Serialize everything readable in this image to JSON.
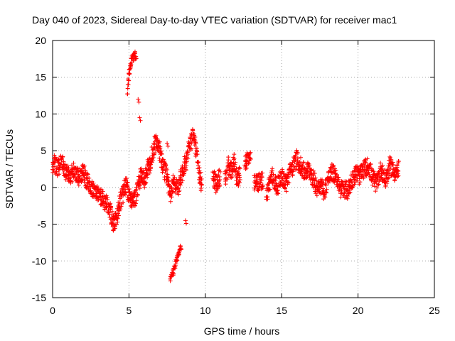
{
  "chart_data": {
    "type": "scatter",
    "title": "Day 040 of 2023, Sidereal Day-to-day VTEC variation (SDTVAR) for receiver mac1",
    "xlabel": "GPS time / hours",
    "ylabel": "SDTVAR / TECUs",
    "xlim": [
      0,
      25
    ],
    "ylim": [
      -15,
      20
    ],
    "xticks": [
      "0",
      "5",
      "10",
      "15",
      "20",
      "25"
    ],
    "yticks": [
      "-15",
      "-10",
      "-5",
      "0",
      "5",
      "10",
      "15",
      "20"
    ],
    "grid": true,
    "marker": "+",
    "series": [
      {
        "name": "SDTVAR",
        "color": "#ff0000",
        "trace": [
          [
            0.0,
            2.5
          ],
          [
            0.1,
            3.5
          ],
          [
            0.3,
            2.5
          ],
          [
            0.5,
            3.2
          ],
          [
            0.7,
            3.0
          ],
          [
            0.9,
            2.0
          ],
          [
            1.1,
            1.5
          ],
          [
            1.4,
            2.2
          ],
          [
            1.7,
            1.5
          ],
          [
            2.0,
            2.2
          ],
          [
            2.2,
            1.0
          ],
          [
            2.5,
            0.0
          ],
          [
            2.8,
            -0.5
          ],
          [
            3.0,
            -1.0
          ],
          [
            3.3,
            -1.5
          ],
          [
            3.6,
            -2.5
          ],
          [
            3.8,
            -3.5
          ],
          [
            4.0,
            -5.0
          ],
          [
            4.2,
            -4.0
          ],
          [
            4.4,
            -2.0
          ],
          [
            4.6,
            -1.0
          ],
          [
            4.8,
            0.5
          ],
          [
            5.0,
            -1.0
          ],
          [
            5.2,
            -2.0
          ],
          [
            5.4,
            -1.5
          ],
          [
            5.6,
            0.0
          ],
          [
            5.8,
            2.0
          ],
          [
            6.0,
            1.0
          ],
          [
            6.2,
            2.5
          ],
          [
            6.4,
            3.0
          ],
          [
            6.6,
            5.0
          ],
          [
            6.8,
            6.5
          ],
          [
            7.0,
            5.0
          ],
          [
            7.2,
            3.0
          ],
          [
            7.5,
            1.5
          ],
          [
            7.7,
            -1.0
          ],
          [
            7.9,
            0.5
          ],
          [
            8.2,
            0.0
          ],
          [
            8.5,
            2.0
          ],
          [
            8.8,
            4.0
          ],
          [
            9.0,
            6.0
          ],
          [
            9.2,
            7.0
          ],
          [
            9.4,
            5.0
          ],
          [
            9.6,
            2.0
          ],
          [
            9.8,
            0.0
          ]
        ],
        "burst": [
          [
            4.9,
            13.0
          ],
          [
            5.0,
            15.5
          ],
          [
            5.15,
            17.0
          ],
          [
            5.3,
            17.8
          ],
          [
            5.5,
            18.0
          ]
        ],
        "dip": [
          [
            7.7,
            -12.5
          ],
          [
            7.9,
            -11.5
          ],
          [
            8.1,
            -10.0
          ],
          [
            8.3,
            -8.5
          ],
          [
            8.45,
            -8.0
          ]
        ],
        "spikes": [
          [
            5.6,
            12.0
          ],
          [
            5.7,
            9.5
          ],
          [
            6.5,
            5.5
          ],
          [
            8.7,
            -4.5
          ],
          [
            7.5,
            6.0
          ]
        ],
        "clusters": [
          [
            [
              10.5,
              1.5
            ],
            [
              10.7,
              0.5
            ],
            [
              11.0,
              1.5
            ]
          ],
          [
            [
              11.3,
              1.0
            ],
            [
              11.5,
              3.0
            ],
            [
              11.7,
              2.0
            ],
            [
              11.9,
              3.5
            ],
            [
              12.1,
              1.0
            ],
            [
              12.3,
              2.0
            ]
          ],
          [
            [
              12.6,
              3.5
            ],
            [
              12.8,
              4.0
            ],
            [
              13.0,
              3.5
            ]
          ],
          [
            [
              13.2,
              0.5
            ],
            [
              13.5,
              0.7
            ],
            [
              13.8,
              1.0
            ]
          ],
          [
            [
              14.0,
              -1.0
            ],
            [
              14.2,
              0.5
            ],
            [
              14.4,
              1.5
            ],
            [
              14.7,
              0.0
            ],
            [
              15.0,
              1.5
            ],
            [
              15.3,
              0.5
            ],
            [
              15.5,
              2.0
            ],
            [
              15.8,
              3.0
            ],
            [
              16.0,
              4.0
            ],
            [
              16.2,
              3.0
            ],
            [
              16.5,
              2.0
            ],
            [
              16.8,
              2.5
            ],
            [
              17.0,
              1.5
            ],
            [
              17.3,
              0.0
            ],
            [
              17.5,
              0.5
            ],
            [
              17.8,
              -0.5
            ],
            [
              18.0,
              1.0
            ],
            [
              18.3,
              2.0
            ],
            [
              18.6,
              1.5
            ],
            [
              18.8,
              -0.5
            ],
            [
              19.0,
              0.0
            ],
            [
              19.3,
              -0.5
            ],
            [
              19.6,
              1.0
            ],
            [
              19.9,
              2.0
            ],
            [
              20.1,
              1.5
            ],
            [
              20.4,
              2.5
            ],
            [
              20.7,
              3.0
            ],
            [
              20.9,
              1.5
            ],
            [
              21.2,
              0.5
            ],
            [
              21.5,
              2.5
            ],
            [
              21.8,
              1.0
            ],
            [
              22.1,
              3.0
            ],
            [
              22.4,
              2.0
            ],
            [
              22.7,
              2.5
            ]
          ]
        ]
      }
    ]
  }
}
